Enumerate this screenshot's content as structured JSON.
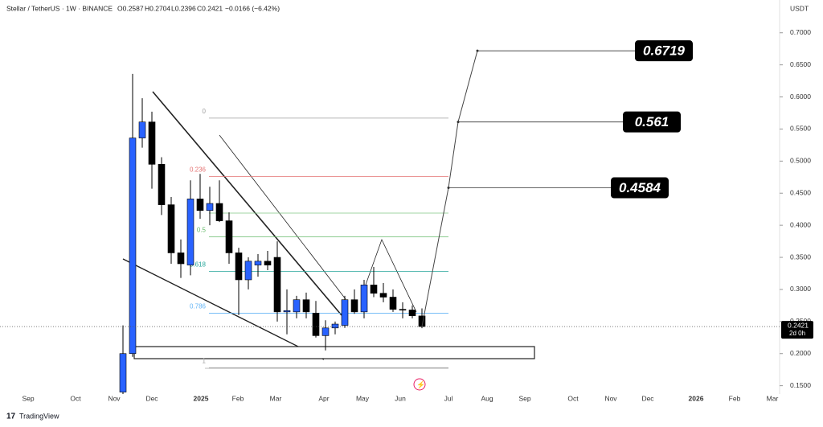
{
  "chart_data": {
    "type": "candlestick",
    "title": "Stellar / TetherUS · 1W · BINANCE",
    "ohlc_labels": [
      "O0.2587",
      "H0.2704",
      "L0.2396",
      "C0.2421"
    ],
    "change_label": "−0.0166 (−6.42%)",
    "currency": "USDT",
    "countdown": "2d 0h",
    "brand": "TradingView",
    "bull_color": "#2962ff",
    "bear_color": "#000000",
    "open": [
      0.14,
      0.2,
      0.536,
      0.561,
      0.495,
      0.432,
      0.357,
      0.338,
      0.441,
      0.423,
      0.434,
      0.407,
      0.357,
      0.315,
      0.338,
      0.344,
      0.35,
      0.265,
      0.265,
      0.284,
      0.263,
      0.228,
      0.24,
      0.244,
      0.284,
      0.265,
      0.307,
      0.294,
      0.288,
      0.269,
      0.268,
      0.2587
    ],
    "high": [
      0.244,
      0.636,
      0.598,
      0.577,
      0.506,
      0.444,
      0.378,
      0.47,
      0.48,
      0.46,
      0.47,
      0.42,
      0.365,
      0.35,
      0.355,
      0.36,
      0.375,
      0.3,
      0.29,
      0.295,
      0.282,
      0.252,
      0.25,
      0.29,
      0.3,
      0.315,
      0.335,
      0.31,
      0.3,
      0.28,
      0.275,
      0.2704
    ],
    "low": [
      0.137,
      0.195,
      0.521,
      0.457,
      0.416,
      0.34,
      0.318,
      0.322,
      0.41,
      0.4,
      0.405,
      0.34,
      0.26,
      0.3,
      0.32,
      0.33,
      0.25,
      0.23,
      0.255,
      0.255,
      0.225,
      0.205,
      0.23,
      0.24,
      0.262,
      0.255,
      0.288,
      0.28,
      0.265,
      0.255,
      0.255,
      0.2396
    ],
    "close": [
      0.2,
      0.536,
      0.561,
      0.495,
      0.432,
      0.357,
      0.34,
      0.441,
      0.423,
      0.434,
      0.407,
      0.357,
      0.315,
      0.344,
      0.344,
      0.338,
      0.265,
      0.267,
      0.284,
      0.265,
      0.228,
      0.24,
      0.246,
      0.284,
      0.265,
      0.307,
      0.294,
      0.288,
      0.269,
      0.268,
      0.259,
      0.2421
    ],
    "ylim": [
      0.137,
      0.726
    ],
    "yticks": [
      {
        "value": 0.15,
        "label": "0.1500"
      },
      {
        "value": 0.2,
        "label": "0.2000"
      },
      {
        "value": 0.25,
        "label": "0.2500"
      },
      {
        "value": 0.3,
        "label": "0.3000"
      },
      {
        "value": 0.35,
        "label": "0.3500"
      },
      {
        "value": 0.4,
        "label": "0.4000"
      },
      {
        "value": 0.45,
        "label": "0.4500"
      },
      {
        "value": 0.5,
        "label": "0.5000"
      },
      {
        "value": 0.55,
        "label": "0.5500"
      },
      {
        "value": 0.6,
        "label": "0.6000"
      },
      {
        "value": 0.65,
        "label": "0.6500"
      },
      {
        "value": 0.7,
        "label": "0.7000"
      }
    ],
    "x_labels": [
      "Sep",
      "Oct",
      "Nov",
      "Dec",
      "2025",
      "Feb",
      "Mar",
      "Apr",
      "May",
      "Jun",
      "Jul",
      "Aug",
      "Sep",
      "Oct",
      "Nov",
      "Dec",
      "2026",
      "Feb",
      "Mar"
    ],
    "fib_levels": [
      {
        "label": "0",
        "price": 0.567,
        "color": "#9e9e9e"
      },
      {
        "label": "0.236",
        "price": 0.476,
        "color": "#e57373"
      },
      {
        "price": 0.419,
        "color": "#81c784"
      },
      {
        "label": "0.5",
        "price": 0.382,
        "color": "#66bb6a"
      },
      {
        "label": "0.618",
        "price": 0.328,
        "color": "#26a69a"
      },
      {
        "label": "0.786",
        "price": 0.263,
        "color": "#64b5f6"
      },
      {
        "label": "1",
        "price": 0.178,
        "color": "#9e9e9e"
      }
    ],
    "targets": [
      0.6719,
      0.561,
      0.4584
    ]
  }
}
